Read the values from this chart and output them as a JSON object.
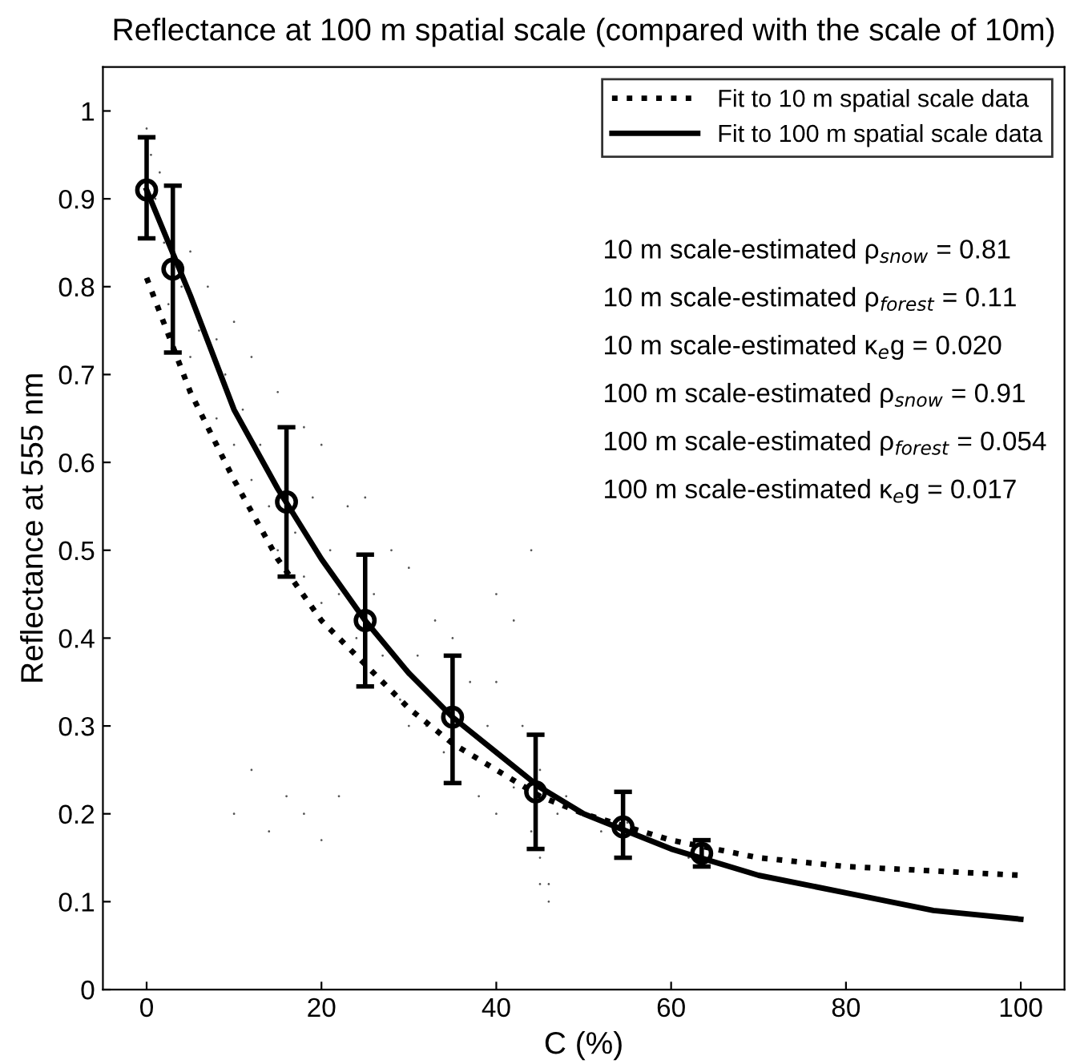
{
  "chart_data": {
    "type": "scatter",
    "title": "Reflectance at 100 m spatial scale (compared with the scale of 10m)",
    "xlabel": "C (%)",
    "ylabel": "Reflectance at 555 nm",
    "xlim": [
      -5,
      105
    ],
    "ylim": [
      0,
      1.05
    ],
    "xticks": [
      0,
      20,
      40,
      60,
      80,
      100
    ],
    "yticks": [
      0,
      0.1,
      0.2,
      0.3,
      0.4,
      0.5,
      0.6,
      0.7,
      0.8,
      0.9,
      1
    ],
    "grid": false,
    "legend": "top right",
    "series": [
      {
        "color": "#555555",
        "x": [
          0,
          0.5,
          1,
          1.5,
          2,
          2.5,
          4,
          5,
          5,
          6,
          7,
          8,
          8,
          9,
          10,
          10,
          11,
          12,
          12,
          13,
          14,
          15,
          15,
          17,
          18,
          18,
          19,
          20,
          20,
          21,
          22,
          23,
          24,
          25,
          26,
          27,
          28,
          29,
          30,
          30,
          31,
          32,
          33,
          34,
          35,
          37,
          38,
          39,
          40,
          40,
          42,
          43,
          44,
          45,
          45,
          46,
          47,
          48,
          52,
          55,
          62,
          10,
          12,
          14,
          16,
          18,
          20,
          22,
          40,
          42,
          44,
          45,
          46
        ],
        "values": [
          0.98,
          0.95,
          0.9,
          0.93,
          0.85,
          0.78,
          0.8,
          0.84,
          0.72,
          0.75,
          0.8,
          0.65,
          0.74,
          0.7,
          0.62,
          0.76,
          0.66,
          0.58,
          0.72,
          0.62,
          0.55,
          0.5,
          0.68,
          0.52,
          0.47,
          0.64,
          0.56,
          0.44,
          0.62,
          0.5,
          0.45,
          0.55,
          0.4,
          0.56,
          0.45,
          0.38,
          0.5,
          0.33,
          0.3,
          0.48,
          0.38,
          0.3,
          0.42,
          0.27,
          0.4,
          0.35,
          0.22,
          0.3,
          0.2,
          0.35,
          0.23,
          0.3,
          0.18,
          0.12,
          0.25,
          0.1,
          0.2,
          0.22,
          0.18,
          0.19,
          0.15,
          0.2,
          0.25,
          0.18,
          0.22,
          0.2,
          0.17,
          0.22,
          0.45,
          0.42,
          0.5,
          0.15,
          0.12
        ]
      },
      {
        "type": "line",
        "name": "Fit to 10 m spatial scale data",
        "color": "#000000",
        "line_style": "dotted",
        "x": [
          0,
          5,
          10,
          15,
          20,
          25,
          30,
          35,
          40,
          45,
          50,
          60,
          70,
          80,
          90,
          100
        ],
        "values": [
          0.81,
          0.68,
          0.58,
          0.49,
          0.42,
          0.37,
          0.32,
          0.28,
          0.25,
          0.22,
          0.2,
          0.17,
          0.15,
          0.14,
          0.135,
          0.13
        ]
      },
      {
        "type": "line",
        "name": "Fit to 100 m spatial scale data",
        "color": "#000000",
        "line_style": "solid",
        "x": [
          0,
          5,
          10,
          15,
          20,
          25,
          30,
          35,
          40,
          45,
          50,
          55,
          60,
          70,
          80,
          90,
          100
        ],
        "values": [
          0.91,
          0.79,
          0.66,
          0.57,
          0.49,
          0.42,
          0.36,
          0.31,
          0.27,
          0.23,
          0.2,
          0.18,
          0.16,
          0.13,
          0.11,
          0.09,
          0.08
        ]
      },
      {
        "marker": "circle",
        "color": "#000000",
        "x": [
          0,
          3,
          16,
          25,
          35,
          44.5,
          54.5,
          63.5
        ],
        "values": [
          0.91,
          0.82,
          0.555,
          0.42,
          0.31,
          0.225,
          0.185,
          0.155
        ],
        "errors": [
          [
            0.855,
            0.97
          ],
          [
            0.725,
            0.915
          ],
          [
            0.47,
            0.64
          ],
          [
            0.345,
            0.495
          ],
          [
            0.235,
            0.38
          ],
          [
            0.16,
            0.29
          ],
          [
            0.15,
            0.225
          ],
          [
            0.14,
            0.17
          ]
        ]
      }
    ],
    "annotations": [
      "10 m scale-estimated ρ$_{snow}$ = 0.81",
      "10 m scale-estimated ρ$_{forest}$ = 0.11",
      "10 m scale-estimated κ$_{e}$g = 0.020",
      "100 m scale-estimated ρ$_{snow}$ = 0.91",
      "100 m scale-estimated ρ$_{forest}$ = 0.054",
      "100 m scale-estimated κ$_{e}$g = 0.017"
    ]
  }
}
